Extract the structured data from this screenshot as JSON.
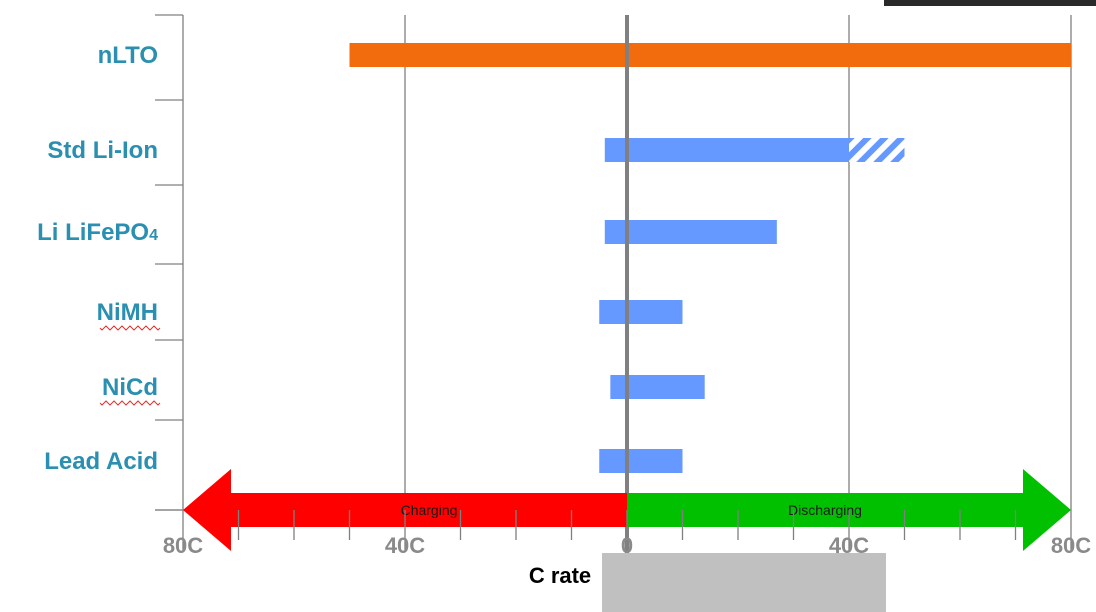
{
  "chart_data": {
    "type": "bar",
    "orientation": "horizontal-range",
    "title": "",
    "xlabel": "C rate",
    "ylabel": "",
    "xlim": [
      -80,
      80
    ],
    "grid": true,
    "x_tick_labels": [
      {
        "value": -80,
        "label": "80C"
      },
      {
        "value": -40,
        "label": "40C"
      },
      {
        "value": 0,
        "label": "0"
      },
      {
        "value": 40,
        "label": "40C"
      },
      {
        "value": 80,
        "label": "80C"
      }
    ],
    "categories": [
      "nLTO",
      "Std Li-Ion",
      "Li LiFePO",
      "NiMH",
      "NiCd",
      "Lead Acid"
    ],
    "category_subscript": [
      "",
      "",
      "4",
      "",
      "",
      ""
    ],
    "category_spellcheck_underline": [
      false,
      false,
      false,
      true,
      true,
      false
    ],
    "ranges": [
      {
        "category": "nLTO",
        "min": -50,
        "max": 80,
        "color": "#f26c0d"
      },
      {
        "category": "Std Li-Ion",
        "min": -4,
        "max": 40,
        "color": "#6699ff",
        "hatched_extension": [
          40,
          50
        ]
      },
      {
        "category": "Li LiFePO4",
        "min": -4,
        "max": 27,
        "color": "#6699ff"
      },
      {
        "category": "NiMH",
        "min": -5,
        "max": 10,
        "color": "#6699ff"
      },
      {
        "category": "NiCd",
        "min": -3,
        "max": 14,
        "color": "#6699ff"
      },
      {
        "category": "Lead Acid",
        "min": -5,
        "max": 10,
        "color": "#6699ff"
      }
    ],
    "direction_arrows": [
      {
        "label": "Charging",
        "from": 0,
        "to": -80,
        "color": "#ff0000"
      },
      {
        "label": "Discharging",
        "from": 0,
        "to": 80,
        "color": "#00c000"
      }
    ]
  },
  "colors": {
    "category_text": "#2a8fb0",
    "tick_text": "#8a8a8a",
    "zero_line": "#808080",
    "gridline": "#808080"
  }
}
